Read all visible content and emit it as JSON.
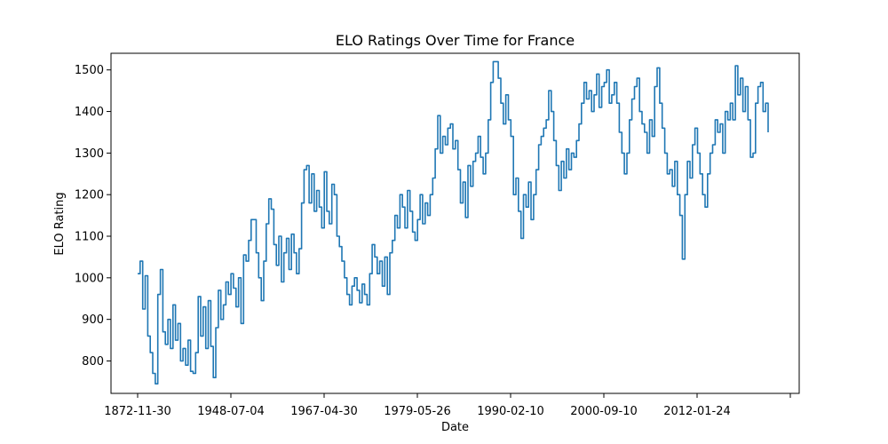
{
  "chart_data": {
    "type": "line",
    "title": "ELO Ratings Over Time for France",
    "xlabel": "Date",
    "ylabel": "ELO Rating",
    "x_tick_labels": [
      "1872-11-30",
      "1948-07-04",
      "1967-04-30",
      "1979-05-26",
      "1990-02-10",
      "2000-09-10",
      "2012-01-24",
      ""
    ],
    "y_ticks": [
      800,
      900,
      1000,
      1100,
      1200,
      1300,
      1400,
      1500
    ],
    "ylim": [
      722,
      1540
    ],
    "grid": false,
    "x_axis": "match index (labels show dates)",
    "series": [
      {
        "color": "#1f77b4",
        "points": [
          [
            0,
            1010
          ],
          [
            1,
            1040
          ],
          [
            2,
            925
          ],
          [
            3,
            1005
          ],
          [
            4,
            860
          ],
          [
            5,
            820
          ],
          [
            6,
            770
          ],
          [
            7,
            745
          ],
          [
            8,
            960
          ],
          [
            9,
            1020
          ],
          [
            10,
            870
          ],
          [
            11,
            840
          ],
          [
            12,
            900
          ],
          [
            13,
            830
          ],
          [
            14,
            935
          ],
          [
            15,
            850
          ],
          [
            16,
            890
          ],
          [
            17,
            800
          ],
          [
            18,
            830
          ],
          [
            19,
            790
          ],
          [
            20,
            850
          ],
          [
            21,
            775
          ],
          [
            22,
            770
          ],
          [
            23,
            820
          ],
          [
            24,
            955
          ],
          [
            25,
            860
          ],
          [
            26,
            930
          ],
          [
            27,
            830
          ],
          [
            28,
            945
          ],
          [
            29,
            835
          ],
          [
            30,
            760
          ],
          [
            31,
            880
          ],
          [
            32,
            970
          ],
          [
            33,
            900
          ],
          [
            34,
            935
          ],
          [
            35,
            990
          ],
          [
            36,
            960
          ],
          [
            37,
            1010
          ],
          [
            38,
            975
          ],
          [
            39,
            930
          ],
          [
            40,
            1000
          ],
          [
            41,
            890
          ],
          [
            42,
            1055
          ],
          [
            43,
            1040
          ],
          [
            44,
            1090
          ],
          [
            45,
            1140
          ],
          [
            46,
            1140
          ],
          [
            47,
            1060
          ],
          [
            48,
            1000
          ],
          [
            49,
            945
          ],
          [
            50,
            1040
          ],
          [
            51,
            1130
          ],
          [
            52,
            1190
          ],
          [
            53,
            1165
          ],
          [
            54,
            1080
          ],
          [
            55,
            1030
          ],
          [
            56,
            1100
          ],
          [
            57,
            990
          ],
          [
            58,
            1060
          ],
          [
            59,
            1095
          ],
          [
            60,
            1020
          ],
          [
            61,
            1105
          ],
          [
            62,
            1060
          ],
          [
            63,
            1010
          ],
          [
            64,
            1070
          ],
          [
            65,
            1180
          ],
          [
            66,
            1260
          ],
          [
            67,
            1270
          ],
          [
            68,
            1180
          ],
          [
            69,
            1250
          ],
          [
            70,
            1160
          ],
          [
            71,
            1210
          ],
          [
            72,
            1170
          ],
          [
            73,
            1120
          ],
          [
            74,
            1255
          ],
          [
            75,
            1160
          ],
          [
            76,
            1130
          ],
          [
            77,
            1225
          ],
          [
            78,
            1200
          ],
          [
            79,
            1100
          ],
          [
            80,
            1075
          ],
          [
            81,
            1040
          ],
          [
            82,
            1000
          ],
          [
            83,
            960
          ],
          [
            84,
            935
          ],
          [
            85,
            980
          ],
          [
            86,
            1000
          ],
          [
            87,
            970
          ],
          [
            88,
            940
          ],
          [
            89,
            985
          ],
          [
            90,
            960
          ],
          [
            91,
            935
          ],
          [
            92,
            1010
          ],
          [
            93,
            1080
          ],
          [
            94,
            1050
          ],
          [
            95,
            1010
          ],
          [
            96,
            1040
          ],
          [
            97,
            980
          ],
          [
            98,
            1050
          ],
          [
            99,
            960
          ],
          [
            100,
            1060
          ],
          [
            101,
            1090
          ],
          [
            102,
            1150
          ],
          [
            103,
            1120
          ],
          [
            104,
            1200
          ],
          [
            105,
            1170
          ],
          [
            106,
            1120
          ],
          [
            107,
            1210
          ],
          [
            108,
            1160
          ],
          [
            109,
            1110
          ],
          [
            110,
            1090
          ],
          [
            111,
            1140
          ],
          [
            112,
            1200
          ],
          [
            113,
            1130
          ],
          [
            114,
            1180
          ],
          [
            115,
            1150
          ],
          [
            116,
            1200
          ],
          [
            117,
            1240
          ],
          [
            118,
            1310
          ],
          [
            119,
            1390
          ],
          [
            120,
            1300
          ],
          [
            121,
            1340
          ],
          [
            122,
            1320
          ],
          [
            123,
            1360
          ],
          [
            124,
            1370
          ],
          [
            125,
            1310
          ],
          [
            126,
            1330
          ],
          [
            127,
            1260
          ],
          [
            128,
            1180
          ],
          [
            129,
            1230
          ],
          [
            130,
            1145
          ],
          [
            131,
            1270
          ],
          [
            132,
            1220
          ],
          [
            133,
            1280
          ],
          [
            134,
            1300
          ],
          [
            135,
            1340
          ],
          [
            136,
            1290
          ],
          [
            137,
            1250
          ],
          [
            138,
            1300
          ],
          [
            139,
            1380
          ],
          [
            140,
            1470
          ],
          [
            141,
            1520
          ],
          [
            142,
            1520
          ],
          [
            143,
            1480
          ],
          [
            144,
            1420
          ],
          [
            145,
            1370
          ],
          [
            146,
            1440
          ],
          [
            147,
            1380
          ],
          [
            148,
            1340
          ],
          [
            149,
            1200
          ],
          [
            150,
            1240
          ],
          [
            151,
            1160
          ],
          [
            152,
            1095
          ],
          [
            153,
            1200
          ],
          [
            154,
            1170
          ],
          [
            155,
            1230
          ],
          [
            156,
            1140
          ],
          [
            157,
            1200
          ],
          [
            158,
            1260
          ],
          [
            159,
            1320
          ],
          [
            160,
            1340
          ],
          [
            161,
            1360
          ],
          [
            162,
            1380
          ],
          [
            163,
            1450
          ],
          [
            164,
            1400
          ],
          [
            165,
            1330
          ],
          [
            166,
            1270
          ],
          [
            167,
            1210
          ],
          [
            168,
            1280
          ],
          [
            169,
            1240
          ],
          [
            170,
            1310
          ],
          [
            171,
            1260
          ],
          [
            172,
            1300
          ],
          [
            173,
            1290
          ],
          [
            174,
            1330
          ],
          [
            175,
            1370
          ],
          [
            176,
            1420
          ],
          [
            177,
            1470
          ],
          [
            178,
            1430
          ],
          [
            179,
            1450
          ],
          [
            180,
            1400
          ],
          [
            181,
            1440
          ],
          [
            182,
            1490
          ],
          [
            183,
            1410
          ],
          [
            184,
            1460
          ],
          [
            185,
            1470
          ],
          [
            186,
            1500
          ],
          [
            187,
            1420
          ],
          [
            188,
            1440
          ],
          [
            189,
            1470
          ],
          [
            190,
            1420
          ],
          [
            191,
            1350
          ],
          [
            192,
            1300
          ],
          [
            193,
            1250
          ],
          [
            194,
            1300
          ],
          [
            195,
            1380
          ],
          [
            196,
            1430
          ],
          [
            197,
            1460
          ],
          [
            198,
            1480
          ],
          [
            199,
            1400
          ],
          [
            200,
            1370
          ],
          [
            201,
            1350
          ],
          [
            202,
            1300
          ],
          [
            203,
            1380
          ],
          [
            204,
            1340
          ],
          [
            205,
            1460
          ],
          [
            206,
            1505
          ],
          [
            207,
            1420
          ],
          [
            208,
            1360
          ],
          [
            209,
            1300
          ],
          [
            210,
            1250
          ],
          [
            211,
            1260
          ],
          [
            212,
            1220
          ],
          [
            213,
            1280
          ],
          [
            214,
            1200
          ],
          [
            215,
            1150
          ],
          [
            216,
            1045
          ],
          [
            217,
            1200
          ],
          [
            218,
            1280
          ],
          [
            219,
            1240
          ],
          [
            220,
            1320
          ],
          [
            221,
            1360
          ],
          [
            222,
            1300
          ],
          [
            223,
            1250
          ],
          [
            224,
            1200
          ],
          [
            225,
            1170
          ],
          [
            226,
            1250
          ],
          [
            227,
            1300
          ],
          [
            228,
            1320
          ],
          [
            229,
            1380
          ],
          [
            230,
            1350
          ],
          [
            231,
            1370
          ],
          [
            232,
            1300
          ],
          [
            233,
            1400
          ],
          [
            234,
            1380
          ],
          [
            235,
            1420
          ],
          [
            236,
            1380
          ],
          [
            237,
            1510
          ],
          [
            238,
            1440
          ],
          [
            239,
            1480
          ],
          [
            240,
            1400
          ],
          [
            241,
            1460
          ],
          [
            242,
            1380
          ],
          [
            243,
            1290
          ],
          [
            244,
            1300
          ],
          [
            245,
            1420
          ],
          [
            246,
            1460
          ],
          [
            247,
            1470
          ],
          [
            248,
            1400
          ],
          [
            249,
            1420
          ],
          [
            250,
            1350
          ]
        ]
      }
    ]
  }
}
